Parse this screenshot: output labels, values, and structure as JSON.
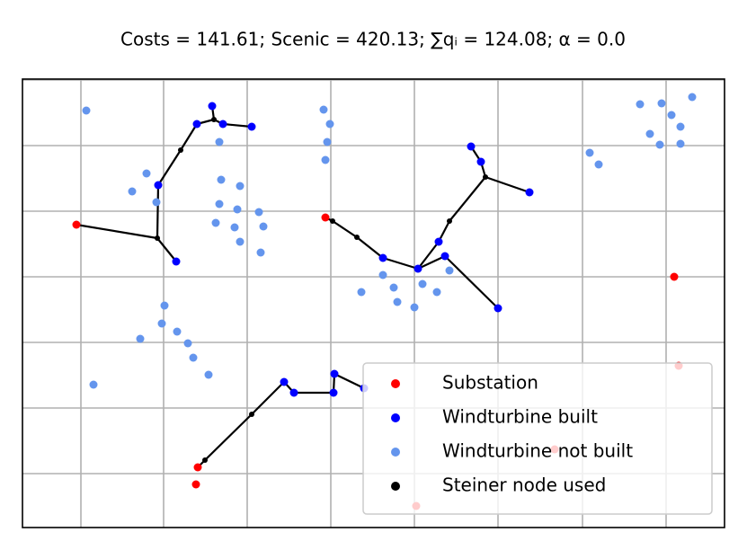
{
  "chart_data": {
    "type": "network",
    "title": "Costs = 141.61; Scenic = 420.13; ∑qᵢ = 124.08; α = 0.0",
    "xlim": [
      0,
      781
    ],
    "ylim": [
      0,
      499
    ],
    "grid": true,
    "xgrid": [
      65,
      157,
      250,
      343,
      436,
      529,
      623,
      716
    ],
    "ygrid": [
      60,
      133,
      206,
      279,
      352,
      425,
      498
    ],
    "legend": "lower right",
    "series": [
      {
        "name": "Substation",
        "color": "#ff0000",
        "x": [
          60,
          337,
          725,
          195,
          193,
          730,
          438,
          592
        ],
        "y": [
          337,
          345,
          279,
          67,
          48,
          180,
          24,
          87
        ]
      },
      {
        "name": "Windturbine built",
        "color": "#0000ff",
        "x": [
          211,
          194,
          223,
          255,
          151,
          171,
          499,
          510,
          564,
          463,
          470,
          401,
          440,
          529,
          291,
          302,
          347,
          346,
          380
        ],
        "y": [
          469,
          449,
          449,
          446,
          381,
          296,
          424,
          407,
          373,
          318,
          302,
          300,
          288,
          244,
          162,
          150,
          171,
          150,
          155
        ]
      },
      {
        "name": "Windturbine not built",
        "color": "#6495ed",
        "x": [
          71,
          335,
          342,
          219,
          339,
          337,
          138,
          122,
          149,
          221,
          242,
          219,
          239,
          263,
          215,
          236,
          268,
          242,
          265,
          158,
          155,
          172,
          131,
          184,
          190,
          207,
          79,
          687,
          711,
          745,
          722,
          732,
          698,
          709,
          732,
          631,
          641,
          401,
          445,
          475,
          377,
          413,
          461,
          417,
          436
        ],
        "y": [
          464,
          465,
          449,
          429,
          429,
          409,
          394,
          374,
          362,
          387,
          380,
          360,
          354,
          351,
          339,
          334,
          335,
          318,
          306,
          247,
          227,
          218,
          210,
          205,
          189,
          170,
          159,
          471,
          472,
          479,
          459,
          446,
          438,
          426,
          427,
          417,
          404,
          281,
          271,
          286,
          262,
          267,
          262,
          251,
          245
        ]
      },
      {
        "name": "Steiner node used",
        "color": "#000000",
        "x": [
          213,
          176,
          150,
          515,
          475,
          345,
          372,
          255,
          203
        ],
        "y": [
          454,
          420,
          322,
          390,
          341,
          341,
          323,
          126,
          75
        ]
      }
    ],
    "edges": [
      [
        [
          1,
          0
        ],
        [
          3,
          0
        ]
      ],
      [
        [
          3,
          0
        ],
        [
          1,
          1
        ]
      ],
      [
        [
          3,
          0
        ],
        [
          1,
          2
        ]
      ],
      [
        [
          1,
          2
        ],
        [
          1,
          3
        ]
      ],
      [
        [
          1,
          1
        ],
        [
          3,
          1
        ]
      ],
      [
        [
          3,
          1
        ],
        [
          1,
          4
        ]
      ],
      [
        [
          1,
          4
        ],
        [
          3,
          2
        ]
      ],
      [
        [
          0,
          0
        ],
        [
          3,
          2
        ]
      ],
      [
        [
          3,
          2
        ],
        [
          1,
          5
        ]
      ],
      [
        [
          0,
          1
        ],
        [
          3,
          5
        ]
      ],
      [
        [
          3,
          5
        ],
        [
          3,
          6
        ]
      ],
      [
        [
          3,
          6
        ],
        [
          1,
          11
        ]
      ],
      [
        [
          1,
          11
        ],
        [
          1,
          12
        ]
      ],
      [
        [
          1,
          12
        ],
        [
          1,
          9
        ]
      ],
      [
        [
          1,
          9
        ],
        [
          3,
          4
        ]
      ],
      [
        [
          3,
          4
        ],
        [
          3,
          3
        ]
      ],
      [
        [
          3,
          3
        ],
        [
          1,
          7
        ]
      ],
      [
        [
          1,
          7
        ],
        [
          1,
          6
        ]
      ],
      [
        [
          3,
          3
        ],
        [
          1,
          8
        ]
      ],
      [
        [
          1,
          12
        ],
        [
          1,
          10
        ]
      ],
      [
        [
          1,
          10
        ],
        [
          1,
          13
        ]
      ],
      [
        [
          0,
          3
        ],
        [
          3,
          8
        ]
      ],
      [
        [
          3,
          8
        ],
        [
          3,
          7
        ]
      ],
      [
        [
          3,
          7
        ],
        [
          1,
          14
        ]
      ],
      [
        [
          1,
          14
        ],
        [
          1,
          15
        ]
      ],
      [
        [
          1,
          15
        ],
        [
          1,
          17
        ]
      ],
      [
        [
          1,
          17
        ],
        [
          1,
          16
        ]
      ],
      [
        [
          1,
          16
        ],
        [
          1,
          18
        ]
      ]
    ]
  }
}
